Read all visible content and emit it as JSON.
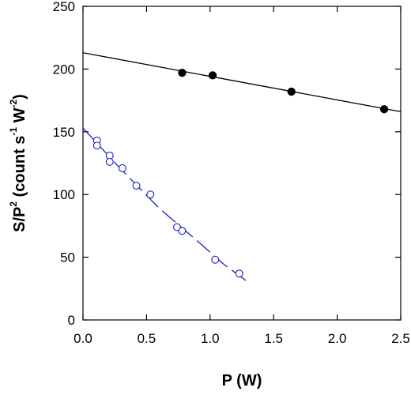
{
  "chart_data": {
    "type": "scatter",
    "xlabel": "P (W)",
    "ylabel": {
      "parts": [
        {
          "text": "S/P",
          "sup": false
        },
        {
          "text": "2",
          "sup": true
        },
        {
          "text": " (count s",
          "sup": false
        },
        {
          "text": "-1",
          "sup": true
        },
        {
          "text": " W",
          "sup": false
        },
        {
          "text": "-2",
          "sup": true
        },
        {
          "text": ")",
          "sup": false
        }
      ]
    },
    "xlim": [
      0,
      2.5
    ],
    "ylim": [
      0,
      250
    ],
    "x_ticks": [
      0.0,
      0.5,
      1.0,
      1.5,
      2.0,
      2.5
    ],
    "x_tick_labels": [
      "0.0",
      "0.5",
      "1.0",
      "1.5",
      "2.0",
      "2.5"
    ],
    "y_ticks": [
      0,
      50,
      100,
      150,
      200,
      250
    ],
    "y_tick_labels": [
      "0",
      "50",
      "100",
      "150",
      "200",
      "250"
    ],
    "grid": false,
    "series": [
      {
        "marker": "filled-circle",
        "color": "#000000",
        "points": [
          {
            "x": 0.78,
            "y": 197
          },
          {
            "x": 1.02,
            "y": 195
          },
          {
            "x": 1.64,
            "y": 182
          },
          {
            "x": 2.37,
            "y": 168
          }
        ],
        "fit": {
          "style": "solid",
          "color": "#000000",
          "x": [
            0.0,
            2.5
          ],
          "y": [
            213,
            166
          ]
        }
      },
      {
        "marker": "open-circle",
        "color": "#1f1fbf",
        "points": [
          {
            "x": 0.11,
            "y": 143
          },
          {
            "x": 0.11,
            "y": 139
          },
          {
            "x": 0.21,
            "y": 131
          },
          {
            "x": 0.21,
            "y": 126
          },
          {
            "x": 0.31,
            "y": 121
          },
          {
            "x": 0.42,
            "y": 107
          },
          {
            "x": 0.53,
            "y": 100
          },
          {
            "x": 0.74,
            "y": 74
          },
          {
            "x": 0.78,
            "y": 71
          },
          {
            "x": 1.04,
            "y": 48
          },
          {
            "x": 1.23,
            "y": 37
          }
        ],
        "fit": {
          "style": "dashed",
          "color": "#1f1fbf",
          "x": [
            0.0,
            0.3,
            0.6,
            0.9,
            1.1,
            1.3
          ],
          "y": [
            153,
            120,
            89,
            63,
            45,
            30
          ]
        }
      }
    ]
  }
}
